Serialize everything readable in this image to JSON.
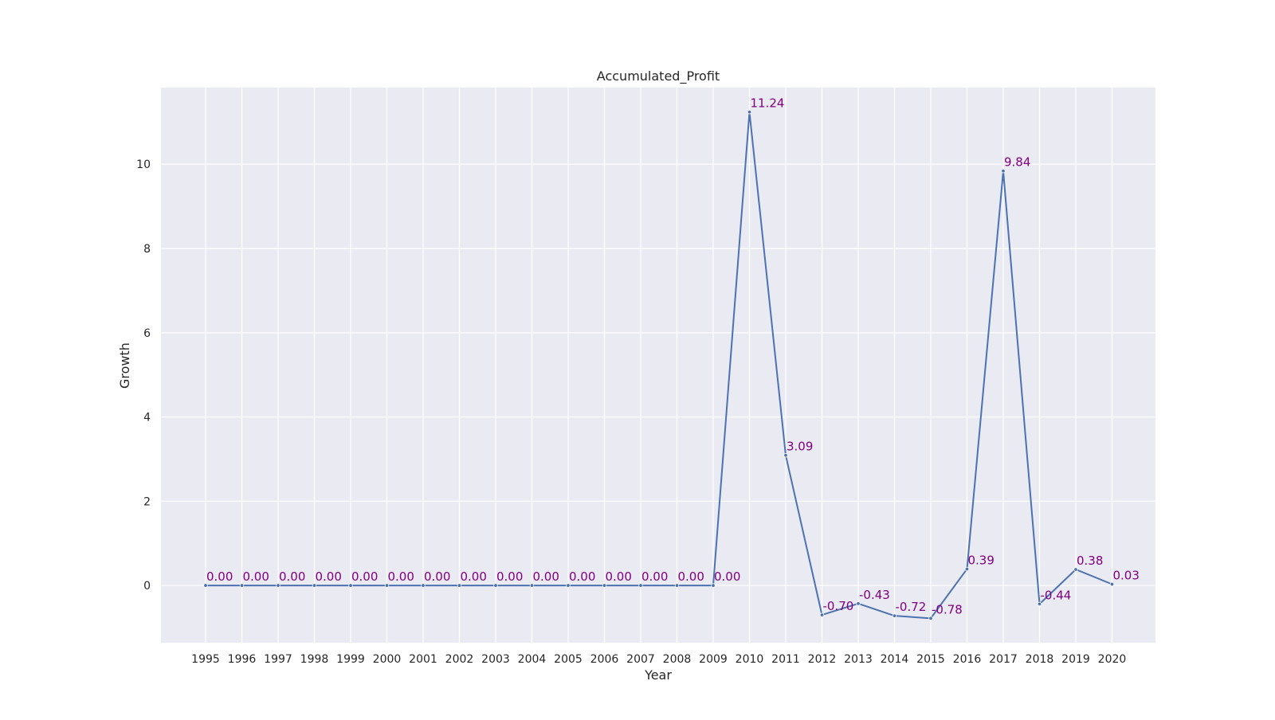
{
  "chart_data": {
    "type": "line",
    "title": "Accumulated_Profit",
    "xlabel": "Year",
    "ylabel": "Growth",
    "x": [
      "1995",
      "1996",
      "1997",
      "1998",
      "1999",
      "2000",
      "2001",
      "2002",
      "2003",
      "2004",
      "2005",
      "2006",
      "2007",
      "2008",
      "2009",
      "2010",
      "2011",
      "2012",
      "2013",
      "2014",
      "2015",
      "2016",
      "2017",
      "2018",
      "2019",
      "2020"
    ],
    "series": [
      {
        "values": [
          0,
          0,
          0,
          0,
          0,
          0,
          0,
          0,
          0,
          0,
          0,
          0,
          0,
          0,
          0,
          11.24,
          3.09,
          -0.7,
          -0.43,
          -0.72,
          -0.78,
          0.39,
          9.84,
          -0.44,
          0.38,
          0.03
        ],
        "color": "#4c72b0"
      }
    ],
    "data_labels": [
      "0.00",
      "0.00",
      "0.00",
      "0.00",
      "0.00",
      "0.00",
      "0.00",
      "0.00",
      "0.00",
      "0.00",
      "0.00",
      "0.00",
      "0.00",
      "0.00",
      "0.00",
      "11.24",
      "3.09",
      "-0.70",
      "-0.43",
      "-0.72",
      "-0.78",
      "0.39",
      "9.84",
      "-0.44",
      "0.38",
      "0.03"
    ],
    "y_ticks": [
      0,
      2,
      4,
      6,
      8,
      10
    ],
    "ylim": [
      -1.36,
      11.82
    ],
    "grid": true,
    "colors": {
      "plot_background": "#eaeaf2",
      "grid": "#ffffff",
      "line": "#4c72b0",
      "label": "#800080"
    }
  }
}
